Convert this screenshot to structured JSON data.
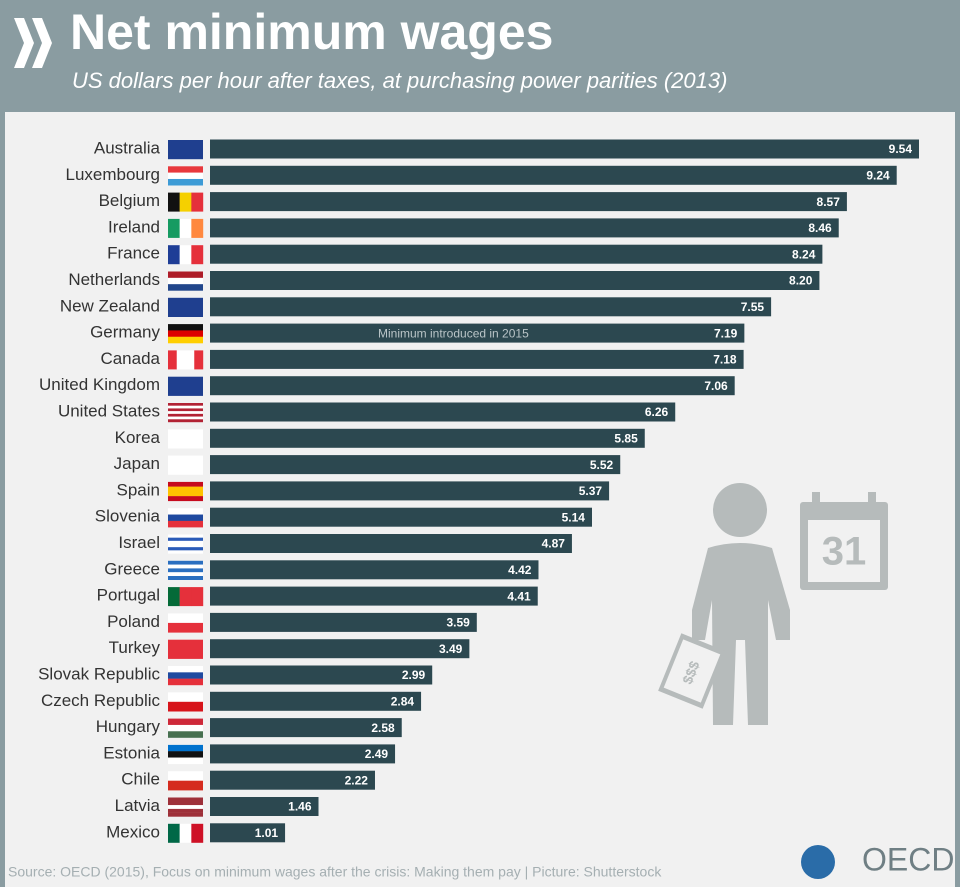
{
  "chart_data": {
    "type": "bar",
    "orientation": "horizontal",
    "title": "Net minimum wages",
    "subtitle": "US dollars per hour after taxes, at purchasing power parities (2013)",
    "categories": [
      "Australia",
      "Luxembourg",
      "Belgium",
      "Ireland",
      "France",
      "Netherlands",
      "New Zealand",
      "Germany",
      "Canada",
      "United Kingdom",
      "United States",
      "Korea",
      "Japan",
      "Spain",
      "Slovenia",
      "Israel",
      "Greece",
      "Portugal",
      "Poland",
      "Turkey",
      "Slovak Republic",
      "Czech Republic",
      "Hungary",
      "Estonia",
      "Chile",
      "Latvia",
      "Mexico"
    ],
    "values": [
      9.54,
      9.24,
      8.57,
      8.46,
      8.24,
      8.2,
      7.55,
      7.19,
      7.18,
      7.06,
      6.26,
      5.85,
      5.52,
      5.37,
      5.14,
      4.87,
      4.42,
      4.41,
      3.59,
      3.49,
      2.99,
      2.84,
      2.58,
      2.49,
      2.22,
      1.46,
      1.01
    ],
    "value_labels": [
      "9.54",
      "9.24",
      "8.57",
      "8.46",
      "8.24",
      "8.20",
      "7.55",
      "7.19",
      "7.18",
      "7.06",
      "6.26",
      "5.85",
      "5.52",
      "5.37",
      "5.14",
      "4.87",
      "4.42",
      "4.41",
      "3.59",
      "3.49",
      "2.99",
      "2.84",
      "2.58",
      "2.49",
      "2.22",
      "1.46",
      "1.01"
    ],
    "color": "#2c4850",
    "annotation": {
      "category_index": 7,
      "text": "Minimum introduced in 2015"
    },
    "source": "Source: OECD (2015), Focus on minimum wages after the crisis: Making them pay | Picture: Shutterstock",
    "logo": "OECD",
    "illustration": {
      "calendar_day": "31",
      "money_label": "$$$"
    }
  }
}
